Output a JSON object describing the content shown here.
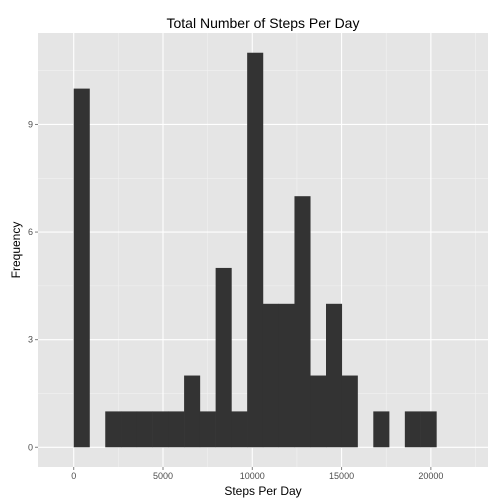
{
  "chart_data": {
    "type": "bar",
    "title": "Total Number of Steps Per Day",
    "xlabel": "Steps Per Day",
    "ylabel": "Frequency",
    "bin_width": 883,
    "bins": [
      {
        "x_start": 0,
        "count": 10
      },
      {
        "x_start": 883,
        "count": 0
      },
      {
        "x_start": 1766,
        "count": 1
      },
      {
        "x_start": 2649,
        "count": 1
      },
      {
        "x_start": 3532,
        "count": 1
      },
      {
        "x_start": 4415,
        "count": 1
      },
      {
        "x_start": 5298,
        "count": 1
      },
      {
        "x_start": 6181,
        "count": 2
      },
      {
        "x_start": 7064,
        "count": 1
      },
      {
        "x_start": 7947,
        "count": 5
      },
      {
        "x_start": 8830,
        "count": 1
      },
      {
        "x_start": 9713,
        "count": 11
      },
      {
        "x_start": 10596,
        "count": 4
      },
      {
        "x_start": 11479,
        "count": 4
      },
      {
        "x_start": 12362,
        "count": 7
      },
      {
        "x_start": 13245,
        "count": 2
      },
      {
        "x_start": 14128,
        "count": 4
      },
      {
        "x_start": 15011,
        "count": 2
      },
      {
        "x_start": 15894,
        "count": 0
      },
      {
        "x_start": 16777,
        "count": 1
      },
      {
        "x_start": 17660,
        "count": 0
      },
      {
        "x_start": 18543,
        "count": 1
      },
      {
        "x_start": 19426,
        "count": 1
      }
    ],
    "xlim": [
      -2000,
      23200
    ],
    "ylim": [
      -0.55,
      11.55
    ],
    "x_ticks": [
      0,
      5000,
      10000,
      15000,
      20000
    ],
    "x_tick_labels": [
      "0",
      "5000",
      "10000",
      "15000",
      "20000"
    ],
    "y_ticks": [
      0,
      3,
      6,
      9
    ],
    "y_tick_labels": [
      "0",
      "3",
      "6",
      "9"
    ],
    "grid": true,
    "colors": {
      "panel": "#e5e5e5",
      "grid_major": "#ffffff",
      "grid_minor": "#f2f2f2",
      "bar": "#333333",
      "tick_text": "#4d4d4d"
    }
  }
}
